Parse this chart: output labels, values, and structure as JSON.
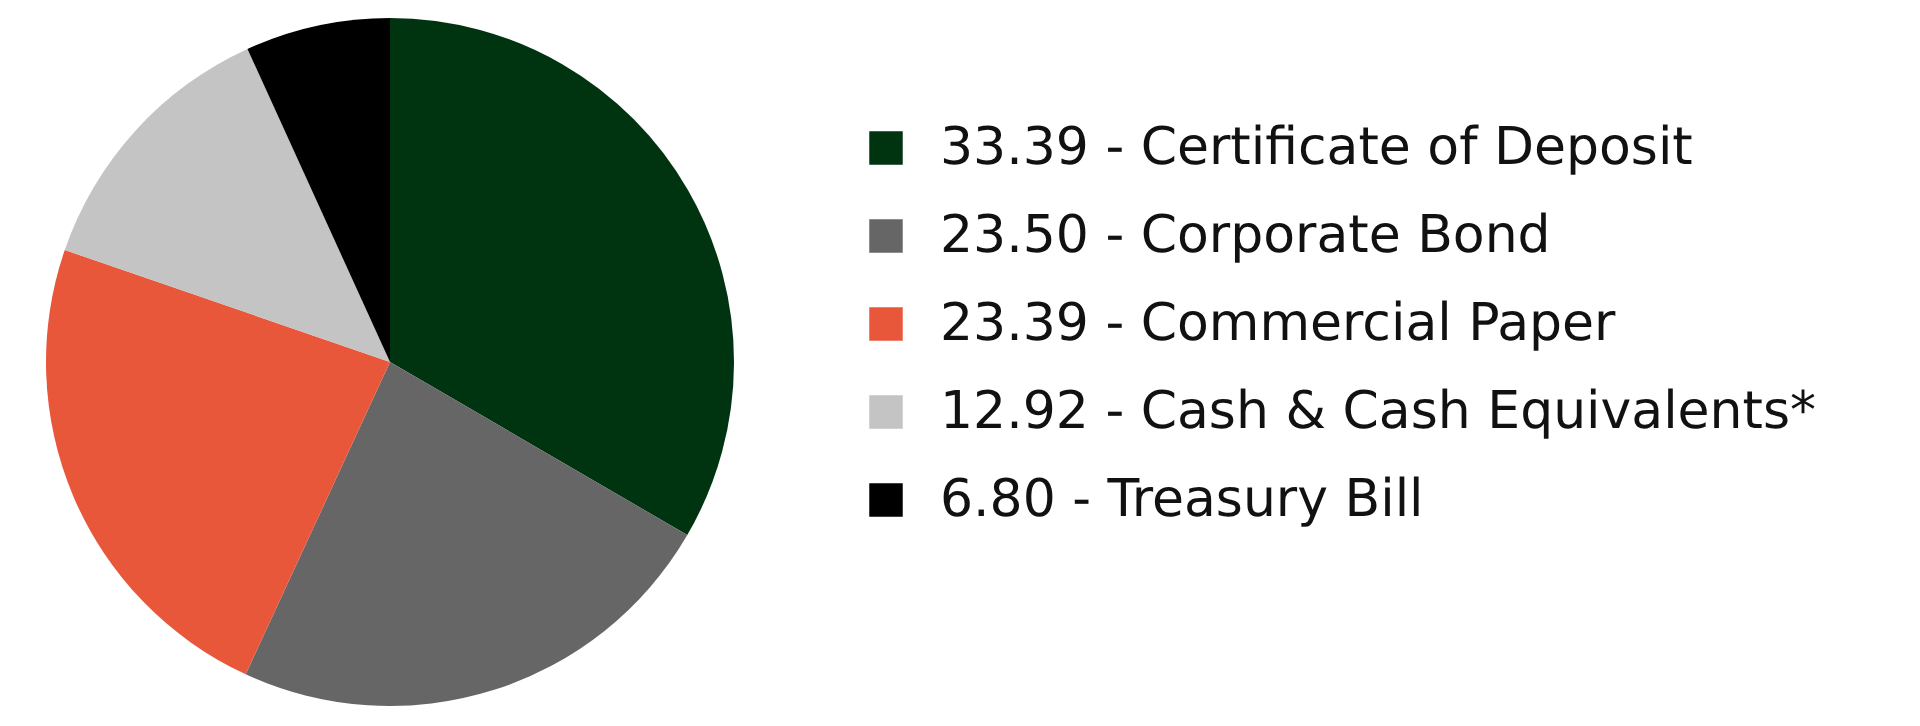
{
  "chart_data": {
    "type": "pie",
    "categories": [
      "Certificate of Deposit",
      "Corporate Bond",
      "Commercial Paper",
      "Cash & Cash Equivalents*",
      "Treasury Bill"
    ],
    "values": [
      33.39,
      23.5,
      23.39,
      12.92,
      6.8
    ],
    "value_labels": [
      "33.39",
      "23.50",
      "23.39",
      "12.92",
      "6.80"
    ],
    "colors": [
      "#003310",
      "#666666",
      "#e8573a",
      "#c4c4c4",
      "#000000"
    ],
    "legend": "right"
  }
}
